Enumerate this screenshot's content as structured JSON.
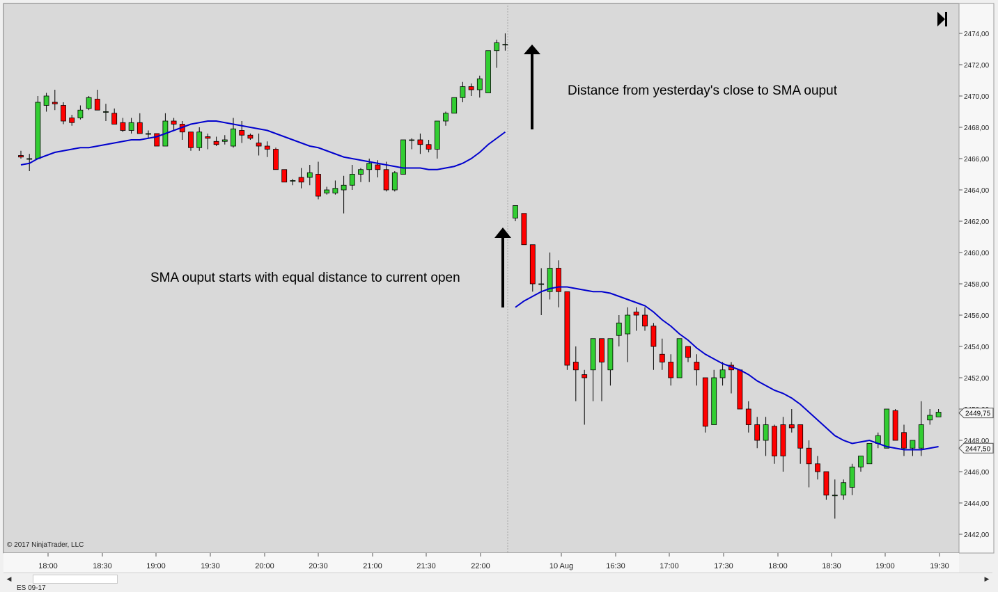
{
  "copyright": "© 2017 NinjaTrader, LLC",
  "instrument_tab": "ES 09-17",
  "annotations": {
    "top": "Distance from yesterday's close to SMA ouput",
    "bottom": "SMA ouput starts with equal distance to current open"
  },
  "colors": {
    "background": "#d9d9d9",
    "up_candle": "#32cd32",
    "down_candle": "#ff0000",
    "sma": "#0000cd",
    "arrow": "#000000"
  },
  "chart_data": {
    "type": "candlestick",
    "ylim": [
      2441.0,
      2475.0
    ],
    "y_ticks": [
      "2474,00",
      "2472,00",
      "2470,00",
      "2468,00",
      "2466,00",
      "2464,00",
      "2462,00",
      "2460,00",
      "2458,00",
      "2456,00",
      "2454,00",
      "2452,00",
      "2450,00",
      "2448,00",
      "2446,00",
      "2444,00",
      "2442,00"
    ],
    "x_ticks": [
      "18:00",
      "18:30",
      "19:00",
      "19:30",
      "20:00",
      "20:30",
      "21:00",
      "21:30",
      "22:00",
      "10 Aug",
      "16:30",
      "17:00",
      "17:30",
      "18:00",
      "18:30",
      "19:00",
      "19:30"
    ],
    "price_labels": [
      "2449,75",
      "2447,50"
    ],
    "price_label_values": [
      2449.75,
      2447.5
    ],
    "session1": {
      "candles": [
        [
          2466.5,
          2466.0,
          2466.2,
          2466.1
        ],
        [
          2466.3,
          2465.2,
          2466.0,
          2466.0
        ],
        [
          2470.0,
          2466.0,
          2466.0,
          2469.6
        ],
        [
          2470.2,
          2469.0,
          2469.4,
          2470.0
        ],
        [
          2470.4,
          2469.1,
          2469.6,
          2469.5
        ],
        [
          2469.6,
          2468.2,
          2469.4,
          2468.4
        ],
        [
          2468.8,
          2468.1,
          2468.6,
          2468.3
        ],
        [
          2469.4,
          2468.5,
          2468.6,
          2469.1
        ],
        [
          2470.0,
          2469.1,
          2469.2,
          2469.9
        ],
        [
          2470.4,
          2469.1,
          2469.8,
          2469.1
        ],
        [
          2469.5,
          2468.4,
          2469.0,
          2469.0
        ],
        [
          2469.2,
          2468.2,
          2468.9,
          2468.2
        ],
        [
          2468.6,
          2467.7,
          2468.3,
          2467.8
        ],
        [
          2468.6,
          2467.6,
          2467.8,
          2468.3
        ],
        [
          2468.9,
          2467.6,
          2468.3,
          2467.6
        ],
        [
          2467.8,
          2467.3,
          2467.6,
          2467.6
        ],
        [
          2467.6,
          2466.8,
          2467.6,
          2466.8
        ],
        [
          2468.9,
          2466.8,
          2466.8,
          2468.4
        ],
        [
          2468.6,
          2467.8,
          2468.4,
          2468.2
        ],
        [
          2468.4,
          2467.2,
          2468.2,
          2467.7
        ],
        [
          2467.7,
          2466.5,
          2467.7,
          2466.7
        ],
        [
          2468.0,
          2466.5,
          2466.7,
          2467.7
        ],
        [
          2467.6,
          2466.6,
          2467.4,
          2467.3
        ],
        [
          2467.4,
          2466.8,
          2467.1,
          2466.9
        ],
        [
          2467.5,
          2466.9,
          2467.1,
          2467.2
        ],
        [
          2468.6,
          2466.7,
          2466.8,
          2467.9
        ],
        [
          2468.4,
          2467.0,
          2467.8,
          2467.5
        ],
        [
          2467.6,
          2467.2,
          2467.5,
          2467.3
        ],
        [
          2467.6,
          2466.2,
          2467.0,
          2466.8
        ],
        [
          2467.1,
          2466.1,
          2466.8,
          2466.6
        ],
        [
          2466.7,
          2465.3,
          2466.6,
          2465.3
        ],
        [
          2465.3,
          2464.5,
          2465.3,
          2464.5
        ],
        [
          2464.7,
          2464.3,
          2464.6,
          2464.6
        ],
        [
          2465.4,
          2464.1,
          2464.8,
          2464.5
        ],
        [
          2465.6,
          2464.3,
          2464.8,
          2465.1
        ],
        [
          2465.8,
          2463.4,
          2465.0,
          2463.6
        ],
        [
          2464.2,
          2463.7,
          2463.8,
          2464.0
        ],
        [
          2464.6,
          2463.7,
          2463.8,
          2464.1
        ],
        [
          2464.9,
          2462.5,
          2464.0,
          2464.3
        ],
        [
          2465.6,
          2464.0,
          2464.3,
          2465.0
        ],
        [
          2465.4,
          2464.5,
          2465.0,
          2465.3
        ],
        [
          2466.0,
          2464.5,
          2465.3,
          2465.7
        ],
        [
          2465.9,
          2464.8,
          2465.6,
          2465.3
        ],
        [
          2465.8,
          2463.9,
          2465.3,
          2464.0
        ],
        [
          2465.2,
          2463.9,
          2464.0,
          2465.1
        ],
        [
          2467.2,
          2465.0,
          2465.0,
          2467.2
        ],
        [
          2467.3,
          2466.6,
          2467.2,
          2467.2
        ],
        [
          2467.6,
          2466.3,
          2467.2,
          2466.9
        ],
        [
          2467.2,
          2466.4,
          2466.9,
          2466.6
        ],
        [
          2468.4,
          2466.0,
          2466.6,
          2468.4
        ],
        [
          2469.0,
          2468.1,
          2468.4,
          2468.9
        ],
        [
          2469.9,
          2468.9,
          2468.9,
          2469.9
        ],
        [
          2470.9,
          2469.6,
          2469.9,
          2470.6
        ],
        [
          2470.8,
          2470.0,
          2470.6,
          2470.4
        ],
        [
          2471.3,
          2469.9,
          2470.4,
          2471.1
        ],
        [
          2472.9,
          2470.2,
          2470.2,
          2472.9
        ],
        [
          2473.6,
          2471.8,
          2472.9,
          2473.4
        ],
        [
          2474.0,
          2472.9,
          2473.3,
          2473.3
        ]
      ],
      "sma": [
        2465.6,
        2465.7,
        2466.0,
        2466.2,
        2466.4,
        2466.5,
        2466.6,
        2466.7,
        2466.7,
        2466.8,
        2466.9,
        2467.0,
        2467.1,
        2467.2,
        2467.2,
        2467.3,
        2467.4,
        2467.6,
        2467.8,
        2468.0,
        2468.2,
        2468.3,
        2468.4,
        2468.4,
        2468.3,
        2468.2,
        2468.1,
        2468.0,
        2467.9,
        2467.8,
        2467.6,
        2467.4,
        2467.2,
        2467.0,
        2466.8,
        2466.7,
        2466.5,
        2466.3,
        2466.1,
        2466.0,
        2465.9,
        2465.8,
        2465.7,
        2465.6,
        2465.5,
        2465.4,
        2465.4,
        2465.4,
        2465.3,
        2465.3,
        2465.4,
        2465.5,
        2465.7,
        2466.0,
        2466.4,
        2466.9,
        2467.3,
        2467.7
      ]
    },
    "session2": {
      "candles": [
        [
          2463.0,
          2462.0,
          2462.2,
          2463.0
        ],
        [
          2462.5,
          2460.5,
          2462.5,
          2460.5
        ],
        [
          2460.5,
          2457.5,
          2460.5,
          2458.0
        ],
        [
          2459.0,
          2456.0,
          2458.0,
          2458.0
        ],
        [
          2460.0,
          2457.0,
          2457.5,
          2459.0
        ],
        [
          2459.5,
          2456.5,
          2459.0,
          2457.5
        ],
        [
          2457.5,
          2452.5,
          2457.5,
          2452.8
        ],
        [
          2454.0,
          2450.5,
          2453.0,
          2452.5
        ],
        [
          2452.5,
          2449.0,
          2452.2,
          2452.0
        ],
        [
          2454.0,
          2450.5,
          2452.5,
          2454.5
        ],
        [
          2454.5,
          2450.5,
          2454.5,
          2453.0
        ],
        [
          2454.5,
          2451.5,
          2452.5,
          2454.5
        ],
        [
          2456.0,
          2454.0,
          2454.7,
          2455.5
        ],
        [
          2456.5,
          2453.0,
          2454.8,
          2456.0
        ],
        [
          2456.5,
          2455.0,
          2456.2,
          2456.0
        ],
        [
          2456.5,
          2455.0,
          2456.0,
          2455.3
        ],
        [
          2455.5,
          2452.5,
          2455.3,
          2454.0
        ],
        [
          2454.5,
          2452.5,
          2453.5,
          2453.0
        ],
        [
          2453.5,
          2451.5,
          2453.0,
          2452.0
        ],
        [
          2454.5,
          2452.0,
          2452.0,
          2454.5
        ],
        [
          2454.0,
          2453.0,
          2454.0,
          2453.3
        ],
        [
          2453.5,
          2451.5,
          2453.0,
          2452.5
        ],
        [
          2452.0,
          2448.5,
          2452.0,
          2448.9
        ],
        [
          2452.5,
          2449.0,
          2449.0,
          2452.0
        ],
        [
          2453.0,
          2451.5,
          2452.0,
          2452.5
        ],
        [
          2453.0,
          2451.0,
          2452.8,
          2452.5
        ],
        [
          2452.5,
          2450.0,
          2452.5,
          2450.0
        ],
        [
          2450.5,
          2448.5,
          2450.0,
          2449.0
        ],
        [
          2449.5,
          2447.5,
          2449.0,
          2448.0
        ],
        [
          2449.5,
          2447.0,
          2448.0,
          2449.0
        ],
        [
          2449.0,
          2446.5,
          2448.9,
          2447.0
        ],
        [
          2449.5,
          2446.0,
          2449.0,
          2447.0
        ],
        [
          2450.0,
          2448.5,
          2449.0,
          2448.8
        ],
        [
          2449.0,
          2446.5,
          2449.0,
          2447.5
        ],
        [
          2448.0,
          2445.0,
          2447.5,
          2446.5
        ],
        [
          2447.0,
          2445.5,
          2446.5,
          2446.0
        ],
        [
          2446.0,
          2444.2,
          2446.0,
          2444.5
        ],
        [
          2445.5,
          2443.0,
          2444.5,
          2444.5
        ],
        [
          2445.5,
          2444.2,
          2444.5,
          2445.3
        ],
        [
          2446.5,
          2444.5,
          2445.0,
          2446.3
        ],
        [
          2447.0,
          2446.0,
          2446.3,
          2447.0
        ],
        [
          2447.5,
          2446.5,
          2446.5,
          2447.8
        ],
        [
          2448.5,
          2447.5,
          2447.8,
          2448.3
        ],
        [
          2450.0,
          2447.5,
          2447.5,
          2450.0
        ],
        [
          2450.0,
          2448.5,
          2449.9,
          2448.0
        ],
        [
          2449.0,
          2447.0,
          2448.5,
          2447.5
        ],
        [
          2448.0,
          2447.0,
          2447.5,
          2448.0
        ],
        [
          2450.5,
          2447.0,
          2447.5,
          2449.0
        ],
        [
          2450.0,
          2449.0,
          2449.3,
          2449.6
        ],
        [
          2450.0,
          2449.5,
          2449.5,
          2449.8
        ]
      ],
      "sma": [
        2456.5,
        2456.9,
        2457.2,
        2457.5,
        2457.7,
        2457.8,
        2457.8,
        2457.7,
        2457.6,
        2457.5,
        2457.5,
        2457.4,
        2457.2,
        2457.0,
        2456.8,
        2456.6,
        2456.2,
        2455.7,
        2455.3,
        2454.8,
        2454.4,
        2453.9,
        2453.5,
        2453.2,
        2452.9,
        2452.7,
        2452.5,
        2452.2,
        2451.8,
        2451.5,
        2451.2,
        2451.0,
        2450.7,
        2450.3,
        2449.8,
        2449.3,
        2448.8,
        2448.3,
        2448.0,
        2447.8,
        2447.9,
        2448.0,
        2447.8,
        2447.6,
        2447.5,
        2447.4,
        2447.4,
        2447.4,
        2447.5,
        2447.6
      ]
    }
  }
}
